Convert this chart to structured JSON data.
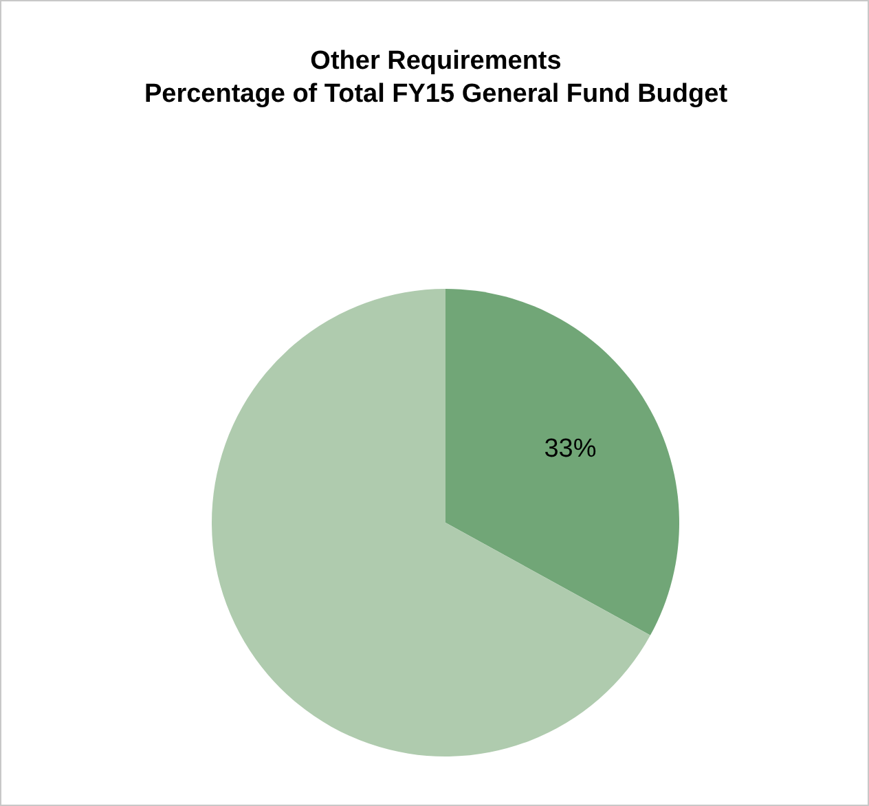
{
  "chart_data": {
    "type": "pie",
    "title": "Other Requirements\nPercentage of Total FY15 General Fund Budget",
    "categories": [
      null,
      null
    ],
    "values": [
      33,
      67
    ],
    "colors": [
      "#71a677",
      "#afcbae"
    ],
    "value_labels": [
      "33%",
      null
    ],
    "legend": false
  }
}
